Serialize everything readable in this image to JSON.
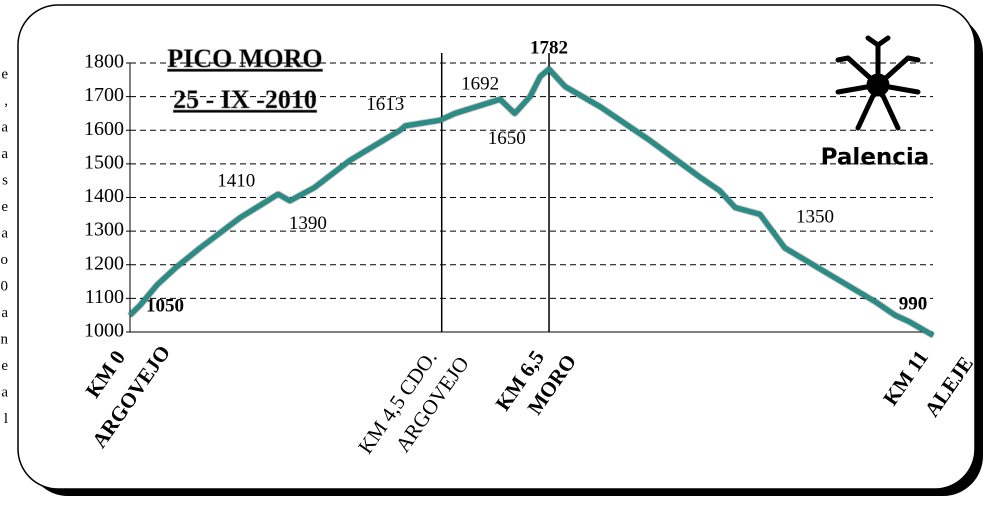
{
  "side_text": [
    "e",
    ",",
    "a",
    "a",
    "s",
    "e",
    "a",
    "o",
    "0",
    "a",
    "n",
    "e",
    "a",
    "l"
  ],
  "logo": {
    "text": "Palencia"
  },
  "chart_data": {
    "type": "line",
    "title": "PICO MORO",
    "subtitle": "25 - IX -2010",
    "x": [
      0,
      0.14,
      0.37,
      0.62,
      0.96,
      1.51,
      2.03,
      2.19,
      2.53,
      3.01,
      3.7,
      3.77,
      4.25,
      4.45,
      5.07,
      5.27,
      5.48,
      5.62,
      5.74,
      5.96,
      6.44,
      7.12,
      7.81,
      8.08,
      8.29,
      8.63,
      8.97,
      9.59,
      10.21,
      10.48,
      10.68,
      11
    ],
    "values": [
      1050,
      1080,
      1140,
      1190,
      1250,
      1340,
      1410,
      1390,
      1430,
      1510,
      1600,
      1613,
      1630,
      1650,
      1692,
      1650,
      1700,
      1760,
      1782,
      1730,
      1670,
      1570,
      1460,
      1420,
      1370,
      1350,
      1250,
      1170,
      1090,
      1050,
      1030,
      990
    ],
    "value_labels": [
      "1050",
      null,
      null,
      null,
      null,
      null,
      "1410",
      "1390",
      null,
      null,
      null,
      "1613",
      null,
      null,
      "1692",
      "1650",
      null,
      null,
      "1782",
      null,
      null,
      null,
      null,
      null,
      null,
      "1350",
      null,
      null,
      null,
      null,
      null,
      "990"
    ],
    "color": "#2a8c84",
    "xlim": [
      0,
      11
    ],
    "xticks": [
      {
        "value": 0,
        "label": "KM 0"
      },
      {
        "value": 4.27,
        "label": "KM 4,5 CDO."
      },
      {
        "value": 5.74,
        "label": "KM 6,5"
      },
      {
        "value": 11,
        "label": "KM 11"
      }
    ],
    "xtick_sublabels": [
      "ARGOVEJO",
      "ARGOVEJO",
      "MORO",
      "ALEJE"
    ],
    "ylim": [
      1000,
      1800
    ],
    "yticks": [
      1000,
      1100,
      1200,
      1300,
      1400,
      1500,
      1600,
      1700,
      1800
    ],
    "grid": true
  }
}
